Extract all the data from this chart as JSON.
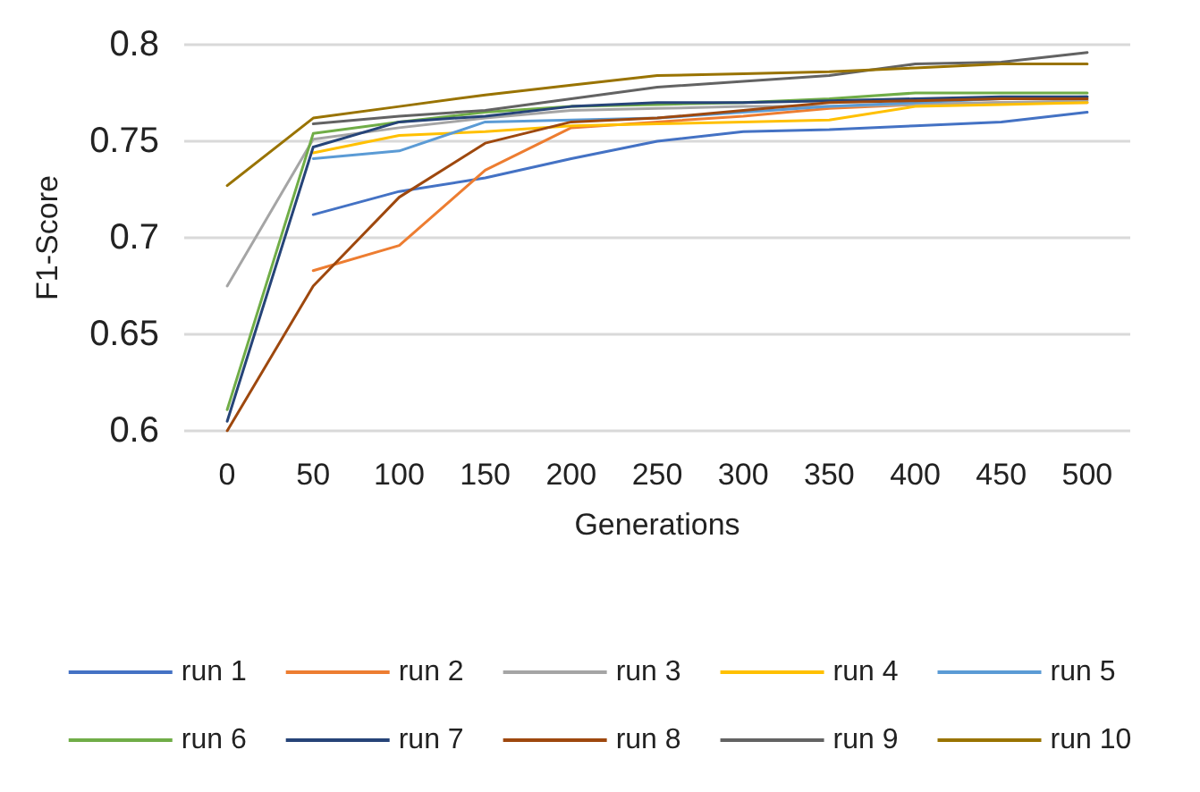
{
  "chart_data": {
    "type": "line",
    "xlabel": "Generations",
    "ylabel": "F1-Score",
    "categories": [
      "0",
      "50",
      "100",
      "150",
      "200",
      "250",
      "300",
      "350",
      "400",
      "450",
      "500"
    ],
    "ylim": [
      0.6,
      0.8
    ],
    "yticks": [
      0.6,
      0.65,
      0.7,
      0.75,
      0.8
    ],
    "grid": "y",
    "legend": "bottom",
    "marker": "none",
    "line_style": "solid",
    "series": [
      {
        "name": "run 1",
        "color": "#4472c4",
        "values": [
          null,
          0.712,
          0.724,
          0.731,
          0.741,
          0.75,
          0.755,
          0.756,
          0.758,
          0.76,
          0.765
        ]
      },
      {
        "name": "run 2",
        "color": "#ed7d31",
        "values": [
          null,
          0.683,
          0.696,
          0.735,
          0.757,
          0.76,
          0.763,
          0.767,
          0.769,
          0.77,
          0.77
        ]
      },
      {
        "name": "run 3",
        "color": "#a5a5a5",
        "values": [
          0.675,
          0.751,
          0.757,
          0.762,
          0.766,
          0.767,
          0.768,
          0.768,
          0.769,
          0.77,
          0.771
        ]
      },
      {
        "name": "run 4",
        "color": "#ffc000",
        "values": [
          null,
          0.744,
          0.753,
          0.755,
          0.758,
          0.759,
          0.76,
          0.761,
          0.768,
          0.769,
          0.77
        ]
      },
      {
        "name": "run 5",
        "color": "#5b9bd5",
        "values": [
          null,
          0.741,
          0.745,
          0.76,
          0.761,
          0.762,
          0.765,
          0.768,
          0.77,
          0.772,
          0.773
        ]
      },
      {
        "name": "run 6",
        "color": "#70ad47",
        "values": [
          0.611,
          0.754,
          0.76,
          0.765,
          0.768,
          0.769,
          0.77,
          0.772,
          0.775,
          0.775,
          0.775
        ]
      },
      {
        "name": "run 7",
        "color": "#264478",
        "values": [
          0.605,
          0.747,
          0.76,
          0.763,
          0.768,
          0.77,
          0.77,
          0.771,
          0.772,
          0.773,
          0.773
        ]
      },
      {
        "name": "run 8",
        "color": "#9e480e",
        "values": [
          0.6,
          0.675,
          0.721,
          0.749,
          0.76,
          0.762,
          0.766,
          0.77,
          0.771,
          0.772,
          0.772
        ]
      },
      {
        "name": "run 9",
        "color": "#636363",
        "values": [
          null,
          0.759,
          0.763,
          0.766,
          0.772,
          0.778,
          0.781,
          0.784,
          0.79,
          0.791,
          0.796
        ]
      },
      {
        "name": "run 10",
        "color": "#997300",
        "values": [
          0.727,
          0.762,
          0.768,
          0.774,
          0.779,
          0.784,
          0.785,
          0.786,
          0.788,
          0.79,
          0.79
        ]
      }
    ]
  }
}
